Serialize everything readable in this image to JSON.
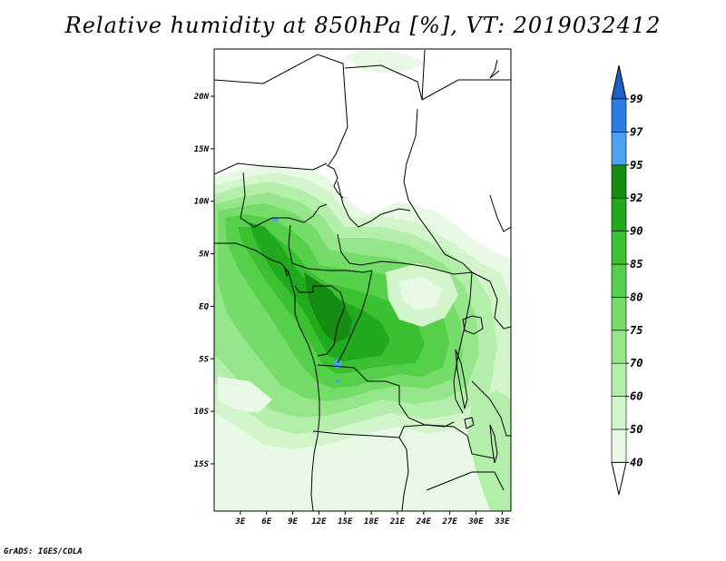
{
  "title": "Relative humidity at 850hPa [%], VT: 2019032412",
  "credit": "GrADS: IGES/COLA",
  "map": {
    "lat_range": [
      -19.5,
      24.5
    ],
    "lon_range": [
      0,
      34
    ],
    "lat_labels": [
      "20N",
      "15N",
      "10N",
      "5N",
      "EQ",
      "5S",
      "10S",
      "15S"
    ],
    "lat_values": [
      20,
      15,
      10,
      5,
      0,
      -5,
      -10,
      -15
    ],
    "lon_labels": [
      "3E",
      "6E",
      "9E",
      "12E",
      "15E",
      "18E",
      "21E",
      "24E",
      "27E",
      "30E",
      "33E"
    ],
    "lon_values": [
      3,
      6,
      9,
      12,
      15,
      18,
      21,
      24,
      27,
      30,
      33
    ]
  },
  "colorbar": {
    "labels": [
      "40",
      "50",
      "60",
      "70",
      "75",
      "80",
      "85",
      "90",
      "92",
      "95",
      "97",
      "99"
    ],
    "colors": {
      "below_40": "#ffffff",
      "40_50": "#e8fae6",
      "50_60": "#d2f5cc",
      "60_70": "#b4eeab",
      "70_75": "#95e58a",
      "75_80": "#76dc69",
      "80_85": "#56d04a",
      "85_90": "#3bc032",
      "90_92": "#22aa1e",
      "92_95": "#158c12",
      "95_97": "#4aa3f0",
      "97_99": "#2c7ee4",
      "above_99": "#1e5fc8"
    }
  }
}
